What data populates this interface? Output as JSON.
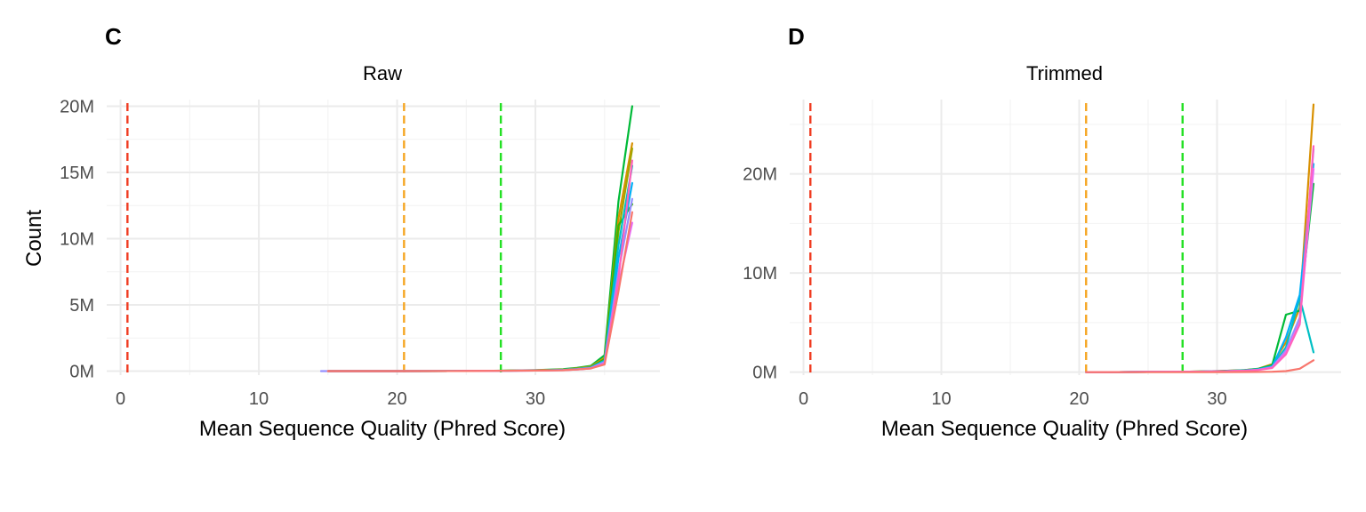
{
  "chart_data": [
    {
      "type": "line",
      "panel_label": "C",
      "title": "Raw",
      "xlabel": "Mean Sequence Quality (Phred Score)",
      "ylabel": "Count",
      "xlim": [
        -1,
        39
      ],
      "ylim": [
        -0.3,
        20.5
      ],
      "x_ticks": [
        0,
        10,
        20,
        30
      ],
      "x_tick_labels": [
        "0",
        "10",
        "20",
        "30"
      ],
      "y_ticks": [
        0,
        5,
        10,
        15,
        20
      ],
      "y_tick_labels": [
        "0M",
        "5M",
        "10M",
        "15M",
        "20M"
      ],
      "y_unit_millions": true,
      "grid": true,
      "legend": "none",
      "threshold_lines": [
        {
          "x": 0.5,
          "color": "#f03b20"
        },
        {
          "x": 20.5,
          "color": "#f5a623"
        },
        {
          "x": 27.5,
          "color": "#22e022"
        }
      ],
      "series": [
        {
          "color": "#00ba38",
          "x": [
            15,
            20,
            25,
            27,
            30,
            32,
            33,
            34,
            35,
            36,
            37
          ],
          "values": [
            0,
            0,
            0.01,
            0.03,
            0.08,
            0.15,
            0.25,
            0.4,
            1.2,
            12.8,
            20.0
          ]
        },
        {
          "color": "#d89000",
          "x": [
            15,
            20,
            25,
            27,
            30,
            32,
            33,
            34,
            35,
            36,
            37
          ],
          "values": [
            0,
            0,
            0.01,
            0.02,
            0.06,
            0.12,
            0.2,
            0.35,
            1.0,
            11.5,
            17.2
          ]
        },
        {
          "color": "#a3a500",
          "x": [
            15,
            20,
            25,
            27,
            30,
            32,
            33,
            34,
            35,
            36,
            37
          ],
          "values": [
            0,
            0,
            0.01,
            0.02,
            0.06,
            0.1,
            0.18,
            0.3,
            0.9,
            10.5,
            16.8
          ]
        },
        {
          "color": "#39b600",
          "x": [
            15,
            20,
            25,
            27,
            30,
            32,
            33,
            34,
            35,
            36,
            37
          ],
          "values": [
            0,
            0,
            0.01,
            0.02,
            0.05,
            0.1,
            0.17,
            0.3,
            0.9,
            11.0,
            12.6
          ]
        },
        {
          "color": "#00bfc4",
          "x": [
            15,
            20,
            25,
            27,
            30,
            32,
            33,
            34,
            35,
            36,
            37
          ],
          "values": [
            0,
            0,
            0.01,
            0.02,
            0.05,
            0.1,
            0.16,
            0.28,
            0.8,
            9.5,
            15.5
          ]
        },
        {
          "color": "#00b0f6",
          "x": [
            15,
            20,
            25,
            27,
            30,
            32,
            33,
            34,
            35,
            36,
            37
          ],
          "values": [
            0,
            0,
            0.01,
            0.02,
            0.05,
            0.09,
            0.15,
            0.26,
            0.75,
            8.5,
            14.2
          ]
        },
        {
          "color": "#9590ff",
          "x": [
            14.5,
            20,
            25,
            27,
            30,
            32,
            33,
            34,
            35,
            36,
            37
          ],
          "values": [
            0,
            0,
            0.01,
            0.02,
            0.04,
            0.08,
            0.14,
            0.24,
            0.7,
            7.5,
            13.0
          ]
        },
        {
          "color": "#e76bf3",
          "x": [
            15,
            20,
            25,
            27,
            30,
            32,
            33,
            34,
            35,
            36,
            37
          ],
          "values": [
            0,
            0,
            0.01,
            0.02,
            0.04,
            0.08,
            0.13,
            0.22,
            0.6,
            6.5,
            11.2
          ]
        },
        {
          "color": "#ff62bc",
          "x": [
            15,
            20,
            25,
            27,
            30,
            32,
            33,
            34,
            35,
            36,
            37
          ],
          "values": [
            0,
            0,
            0.01,
            0.02,
            0.04,
            0.07,
            0.12,
            0.2,
            0.55,
            7.0,
            15.9
          ]
        },
        {
          "color": "#f8766d",
          "x": [
            15,
            20,
            25,
            27,
            30,
            32,
            33,
            34,
            35,
            36,
            37
          ],
          "values": [
            0,
            0,
            0.01,
            0.02,
            0.04,
            0.07,
            0.12,
            0.2,
            0.5,
            6.0,
            12.0
          ]
        }
      ]
    },
    {
      "type": "line",
      "panel_label": "D",
      "title": "Trimmed",
      "xlabel": "Mean Sequence Quality (Phred Score)",
      "ylabel": "",
      "xlim": [
        -1,
        39
      ],
      "ylim": [
        -0.3,
        27.5
      ],
      "x_ticks": [
        0,
        10,
        20,
        30
      ],
      "x_tick_labels": [
        "0",
        "10",
        "20",
        "30"
      ],
      "y_ticks": [
        0,
        10,
        20
      ],
      "y_tick_labels": [
        "0M",
        "10M",
        "20M"
      ],
      "y_unit_millions": true,
      "grid": true,
      "legend": "none",
      "threshold_lines": [
        {
          "x": 0.5,
          "color": "#f03b20"
        },
        {
          "x": 20.5,
          "color": "#f5a623"
        },
        {
          "x": 27.5,
          "color": "#22e022"
        }
      ],
      "series": [
        {
          "color": "#d89000",
          "x": [
            20.5,
            22,
            25,
            28,
            30,
            32,
            33,
            34,
            35,
            36,
            37
          ],
          "values": [
            0,
            0,
            0.02,
            0.05,
            0.1,
            0.2,
            0.35,
            0.8,
            3.0,
            6.5,
            27.0
          ]
        },
        {
          "color": "#00ba38",
          "x": [
            20.5,
            22,
            25,
            28,
            30,
            32,
            33,
            34,
            35,
            36,
            37
          ],
          "values": [
            0,
            0,
            0.02,
            0.05,
            0.1,
            0.2,
            0.35,
            0.7,
            5.8,
            6.2,
            19.0
          ]
        },
        {
          "color": "#00bfc4",
          "x": [
            20.5,
            22,
            25,
            28,
            30,
            32,
            33,
            34,
            35,
            36,
            37
          ],
          "values": [
            0,
            0,
            0.02,
            0.04,
            0.08,
            0.18,
            0.3,
            0.6,
            2.5,
            7.5,
            2.0
          ]
        },
        {
          "color": "#00b0f6",
          "x": [
            20.5,
            22,
            25,
            28,
            30,
            32,
            33,
            34,
            35,
            36,
            37
          ],
          "values": [
            0,
            0,
            0.02,
            0.04,
            0.08,
            0.16,
            0.28,
            0.55,
            3.5,
            7.8,
            21.0
          ]
        },
        {
          "color": "#9590ff",
          "x": [
            20.5,
            22,
            25,
            28,
            30,
            32,
            33,
            34,
            35,
            36,
            37
          ],
          "values": [
            0,
            0,
            0.02,
            0.04,
            0.07,
            0.15,
            0.25,
            0.5,
            2.2,
            5.5,
            22.5
          ]
        },
        {
          "color": "#e76bf3",
          "x": [
            20.5,
            22,
            25,
            28,
            30,
            32,
            33,
            34,
            35,
            36,
            37
          ],
          "values": [
            0,
            0,
            0.02,
            0.04,
            0.07,
            0.14,
            0.24,
            0.45,
            2.0,
            5.0,
            20.5
          ]
        },
        {
          "color": "#ff62bc",
          "x": [
            20.5,
            22,
            25,
            28,
            30,
            32,
            33,
            34,
            35,
            36,
            37
          ],
          "values": [
            0,
            0,
            0.02,
            0.04,
            0.07,
            0.14,
            0.22,
            0.42,
            1.8,
            4.8,
            22.8
          ]
        },
        {
          "color": "#f8766d",
          "x": [
            20.5,
            22,
            25,
            28,
            30,
            32,
            33,
            34,
            35,
            36,
            37
          ],
          "values": [
            0,
            0,
            0,
            0,
            0,
            0.01,
            0.02,
            0.04,
            0.1,
            0.35,
            1.2
          ]
        }
      ]
    }
  ]
}
